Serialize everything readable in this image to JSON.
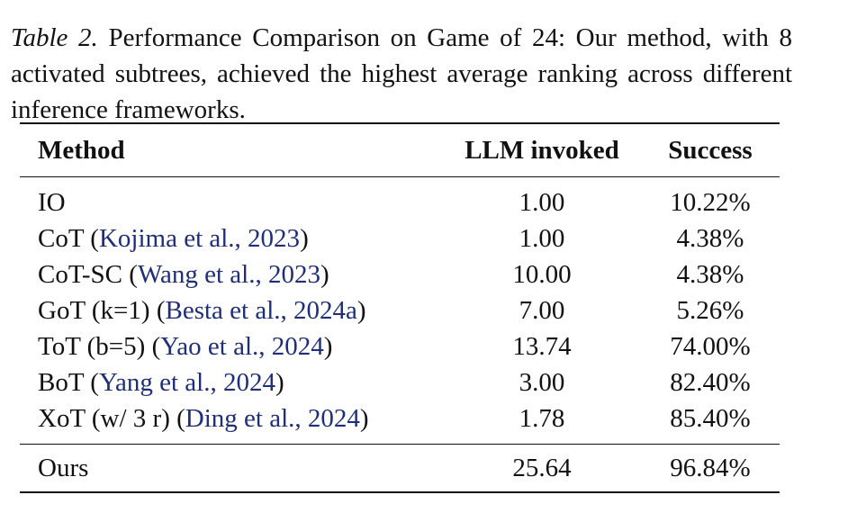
{
  "caption": {
    "label": "Table 2.",
    "text": "Performance Comparison on Game of 24: Our method, with 8 activated subtrees, achieved the highest average ranking across different inference frameworks."
  },
  "table": {
    "headers": {
      "method": "Method",
      "llm": "LLM invoked",
      "success": "Success"
    },
    "rows": [
      {
        "method": "IO",
        "cite_open": "",
        "cite": "",
        "cite_close": "",
        "llm": "1.00",
        "success": "10.22%"
      },
      {
        "method": "CoT ",
        "cite_open": "(",
        "cite": "Kojima et al., 2023",
        "cite_close": ")",
        "llm": "1.00",
        "success": "4.38%"
      },
      {
        "method": "CoT-SC ",
        "cite_open": "(",
        "cite": "Wang et al., 2023",
        "cite_close": ")",
        "llm": "10.00",
        "success": "4.38%"
      },
      {
        "method": "GoT (k=1) ",
        "cite_open": "(",
        "cite": "Besta et al., 2024a",
        "cite_close": ")",
        "llm": "7.00",
        "success": "5.26%"
      },
      {
        "method": "ToT (b=5) ",
        "cite_open": "(",
        "cite": "Yao et al., 2024",
        "cite_close": ")",
        "llm": "13.74",
        "success": "74.00%"
      },
      {
        "method": "BoT ",
        "cite_open": "(",
        "cite": "Yang et al., 2024",
        "cite_close": ")",
        "llm": "3.00",
        "success": "82.40%"
      },
      {
        "method": "XoT (w/ 3 r) ",
        "cite_open": "(",
        "cite": "Ding et al., 2024",
        "cite_close": ")",
        "llm": "1.78",
        "success": "85.40%"
      }
    ],
    "ours": {
      "method": "Ours",
      "llm": "25.64",
      "success": "96.84%"
    }
  }
}
